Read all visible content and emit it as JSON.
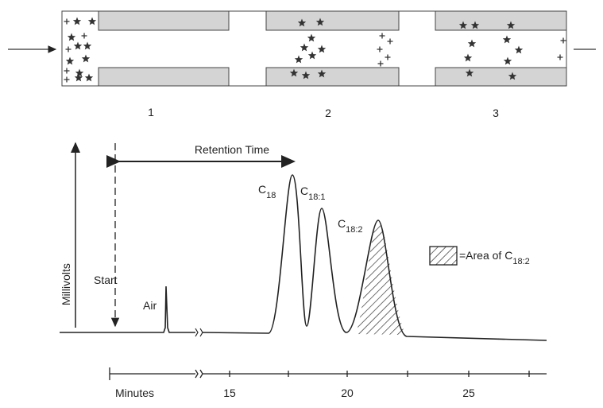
{
  "column": {
    "stages": [
      "1",
      "2",
      "3"
    ]
  },
  "chromatogram": {
    "axis_label": "Millivolts",
    "retention_label": "Retention Time",
    "start_label": "Start",
    "air_label": "Air",
    "peaks": [
      {
        "base": "C",
        "sub": "18"
      },
      {
        "base": "C",
        "sub": "18:1"
      },
      {
        "base": "C",
        "sub": "18:2"
      }
    ],
    "legend": {
      "prefix": "=Area of C",
      "sub": "18:2"
    },
    "time_axis": {
      "label": "Minutes",
      "ticks": [
        "15",
        "20",
        "25"
      ]
    }
  }
}
